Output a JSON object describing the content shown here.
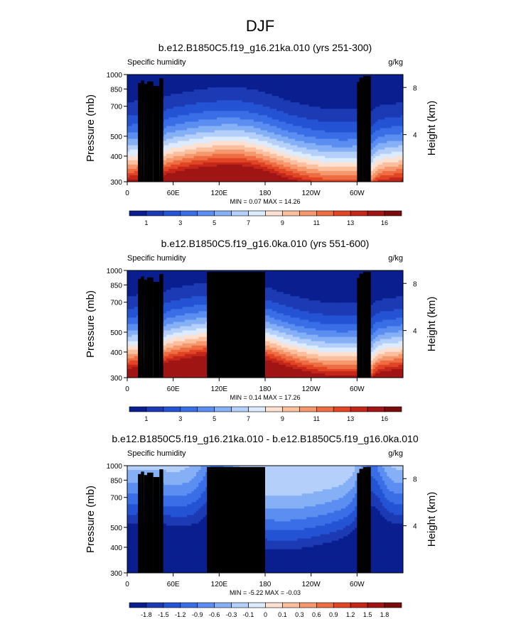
{
  "figure": {
    "title": "DJF"
  },
  "chart_data": [
    {
      "type": "heatmap",
      "title": "b.e12.B1850C5.f19_g16.21ka.010 (yrs 251-300)",
      "left_label": "Specific humidity",
      "right_label": "g/kg",
      "xlabel": "",
      "ylabel": "Pressure (mb)",
      "y2label": "Height (km)",
      "x_ticks": [
        "0",
        "60E",
        "120E",
        "180",
        "120W",
        "60W"
      ],
      "x_tick_values": [
        0,
        60,
        120,
        180,
        240,
        300
      ],
      "xlim": [
        0,
        360
      ],
      "y_ticks": [
        300,
        400,
        500,
        700,
        850,
        1000
      ],
      "ylim": [
        1000,
        300
      ],
      "y2_ticks": [
        8,
        4
      ],
      "summary": "MIN =   0.07  MAX =  14.26",
      "min": 0.07,
      "max": 14.26,
      "colorbar_labels": [
        "1",
        "3",
        "5",
        "7",
        "9",
        "11",
        "13",
        "16"
      ],
      "colorbar_colors": [
        "#0a1f8f",
        "#1c3ab4",
        "#2453d4",
        "#3a6ee6",
        "#5b8ef0",
        "#86b0f6",
        "#b4d0fa",
        "#dcebfd",
        "#fde0d0",
        "#fbbf9e",
        "#f6986e",
        "#ee6d43",
        "#e14524",
        "#c4261a",
        "#a01515",
        "#7a0c0c"
      ]
    },
    {
      "type": "heatmap",
      "title": "b.e12.B1850C5.f19_g16.0ka.010 (yrs 551-600)",
      "left_label": "Specific humidity",
      "right_label": "g/kg",
      "xlabel": "",
      "ylabel": "Pressure (mb)",
      "y2label": "Height (km)",
      "x_ticks": [
        "0",
        "60E",
        "120E",
        "180",
        "120W",
        "60W"
      ],
      "x_tick_values": [
        0,
        60,
        120,
        180,
        240,
        300
      ],
      "xlim": [
        0,
        360
      ],
      "y_ticks": [
        300,
        400,
        500,
        700,
        850,
        1000
      ],
      "ylim": [
        1000,
        300
      ],
      "y2_ticks": [
        8,
        4
      ],
      "summary": "MIN =   0.14  MAX =  17.26",
      "min": 0.14,
      "max": 17.26,
      "colorbar_labels": [
        "1",
        "3",
        "5",
        "7",
        "9",
        "11",
        "13",
        "16"
      ],
      "colorbar_colors": [
        "#0a1f8f",
        "#1c3ab4",
        "#2453d4",
        "#3a6ee6",
        "#5b8ef0",
        "#86b0f6",
        "#b4d0fa",
        "#dcebfd",
        "#fde0d0",
        "#fbbf9e",
        "#f6986e",
        "#ee6d43",
        "#e14524",
        "#c4261a",
        "#a01515",
        "#7a0c0c"
      ]
    },
    {
      "type": "heatmap",
      "title": "b.e12.B1850C5.f19_g16.21ka.010 - b.e12.B1850C5.f19_g16.0ka.010",
      "left_label": "Specific humidity",
      "right_label": "g/kg",
      "xlabel": "",
      "ylabel": "Pressure (mb)",
      "y2label": "Height (km)",
      "x_ticks": [
        "0",
        "60E",
        "120E",
        "180",
        "120W",
        "60W"
      ],
      "x_tick_values": [
        0,
        60,
        120,
        180,
        240,
        300
      ],
      "xlim": [
        0,
        360
      ],
      "y_ticks": [
        300,
        400,
        500,
        700,
        850,
        1000
      ],
      "ylim": [
        1000,
        300
      ],
      "y2_ticks": [
        8,
        4
      ],
      "summary": "MIN = -5.22  MAX = -0.03",
      "min": -5.22,
      "max": -0.03,
      "colorbar_labels": [
        "-1.8",
        "-1.5",
        "-1.2",
        "-0.9",
        "-0.6",
        "-0.3",
        "-0.1",
        "0",
        "0.1",
        "0.3",
        "0.6",
        "0.9",
        "1.2",
        "1.5",
        "1.8"
      ],
      "colorbar_colors": [
        "#0a1f8f",
        "#1c3ab4",
        "#2453d4",
        "#3a6ee6",
        "#5b8ef0",
        "#86b0f6",
        "#b4d0fa",
        "#dcebfd",
        "#fde0d0",
        "#fbbf9e",
        "#f6986e",
        "#ee6d43",
        "#e14524",
        "#c4261a",
        "#a01515",
        "#7a0c0c"
      ]
    }
  ]
}
